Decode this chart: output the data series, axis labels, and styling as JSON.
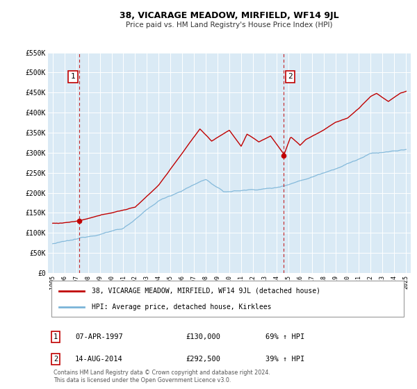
{
  "title": "38, VICARAGE MEADOW, MIRFIELD, WF14 9JL",
  "subtitle": "Price paid vs. HM Land Registry's House Price Index (HPI)",
  "hpi_label": "HPI: Average price, detached house, Kirklees",
  "price_label": "38, VICARAGE MEADOW, MIRFIELD, WF14 9JL (detached house)",
  "hpi_color": "#7ab4d8",
  "price_color": "#c00000",
  "marker_color": "#c00000",
  "vline_color": "#c00000",
  "plot_bg": "#daeaf5",
  "grid_color": "#ffffff",
  "sale1_date": 1997.27,
  "sale1_price": 130000,
  "sale2_date": 2014.62,
  "sale2_price": 292500,
  "ylim": [
    0,
    550000
  ],
  "xlim_left": 1994.6,
  "xlim_right": 2025.4,
  "yticks": [
    0,
    50000,
    100000,
    150000,
    200000,
    250000,
    300000,
    350000,
    400000,
    450000,
    500000,
    550000
  ],
  "ytick_labels": [
    "£0",
    "£50K",
    "£100K",
    "£150K",
    "£200K",
    "£250K",
    "£300K",
    "£350K",
    "£400K",
    "£450K",
    "£500K",
    "£550K"
  ],
  "xticks": [
    1995,
    1996,
    1997,
    1998,
    1999,
    2000,
    2001,
    2002,
    2003,
    2004,
    2005,
    2006,
    2007,
    2008,
    2009,
    2010,
    2011,
    2012,
    2013,
    2014,
    2015,
    2016,
    2017,
    2018,
    2019,
    2020,
    2021,
    2022,
    2023,
    2024,
    2025
  ],
  "legend_box_color": "#c00000",
  "footnote": "Contains HM Land Registry data © Crown copyright and database right 2024.\nThis data is licensed under the Open Government Licence v3.0.",
  "sale1_date_str": "07-APR-1997",
  "sale1_price_str": "£130,000",
  "sale1_hpi_str": "69% ↑ HPI",
  "sale2_date_str": "14-AUG-2014",
  "sale2_price_str": "£292,500",
  "sale2_hpi_str": "39% ↑ HPI"
}
